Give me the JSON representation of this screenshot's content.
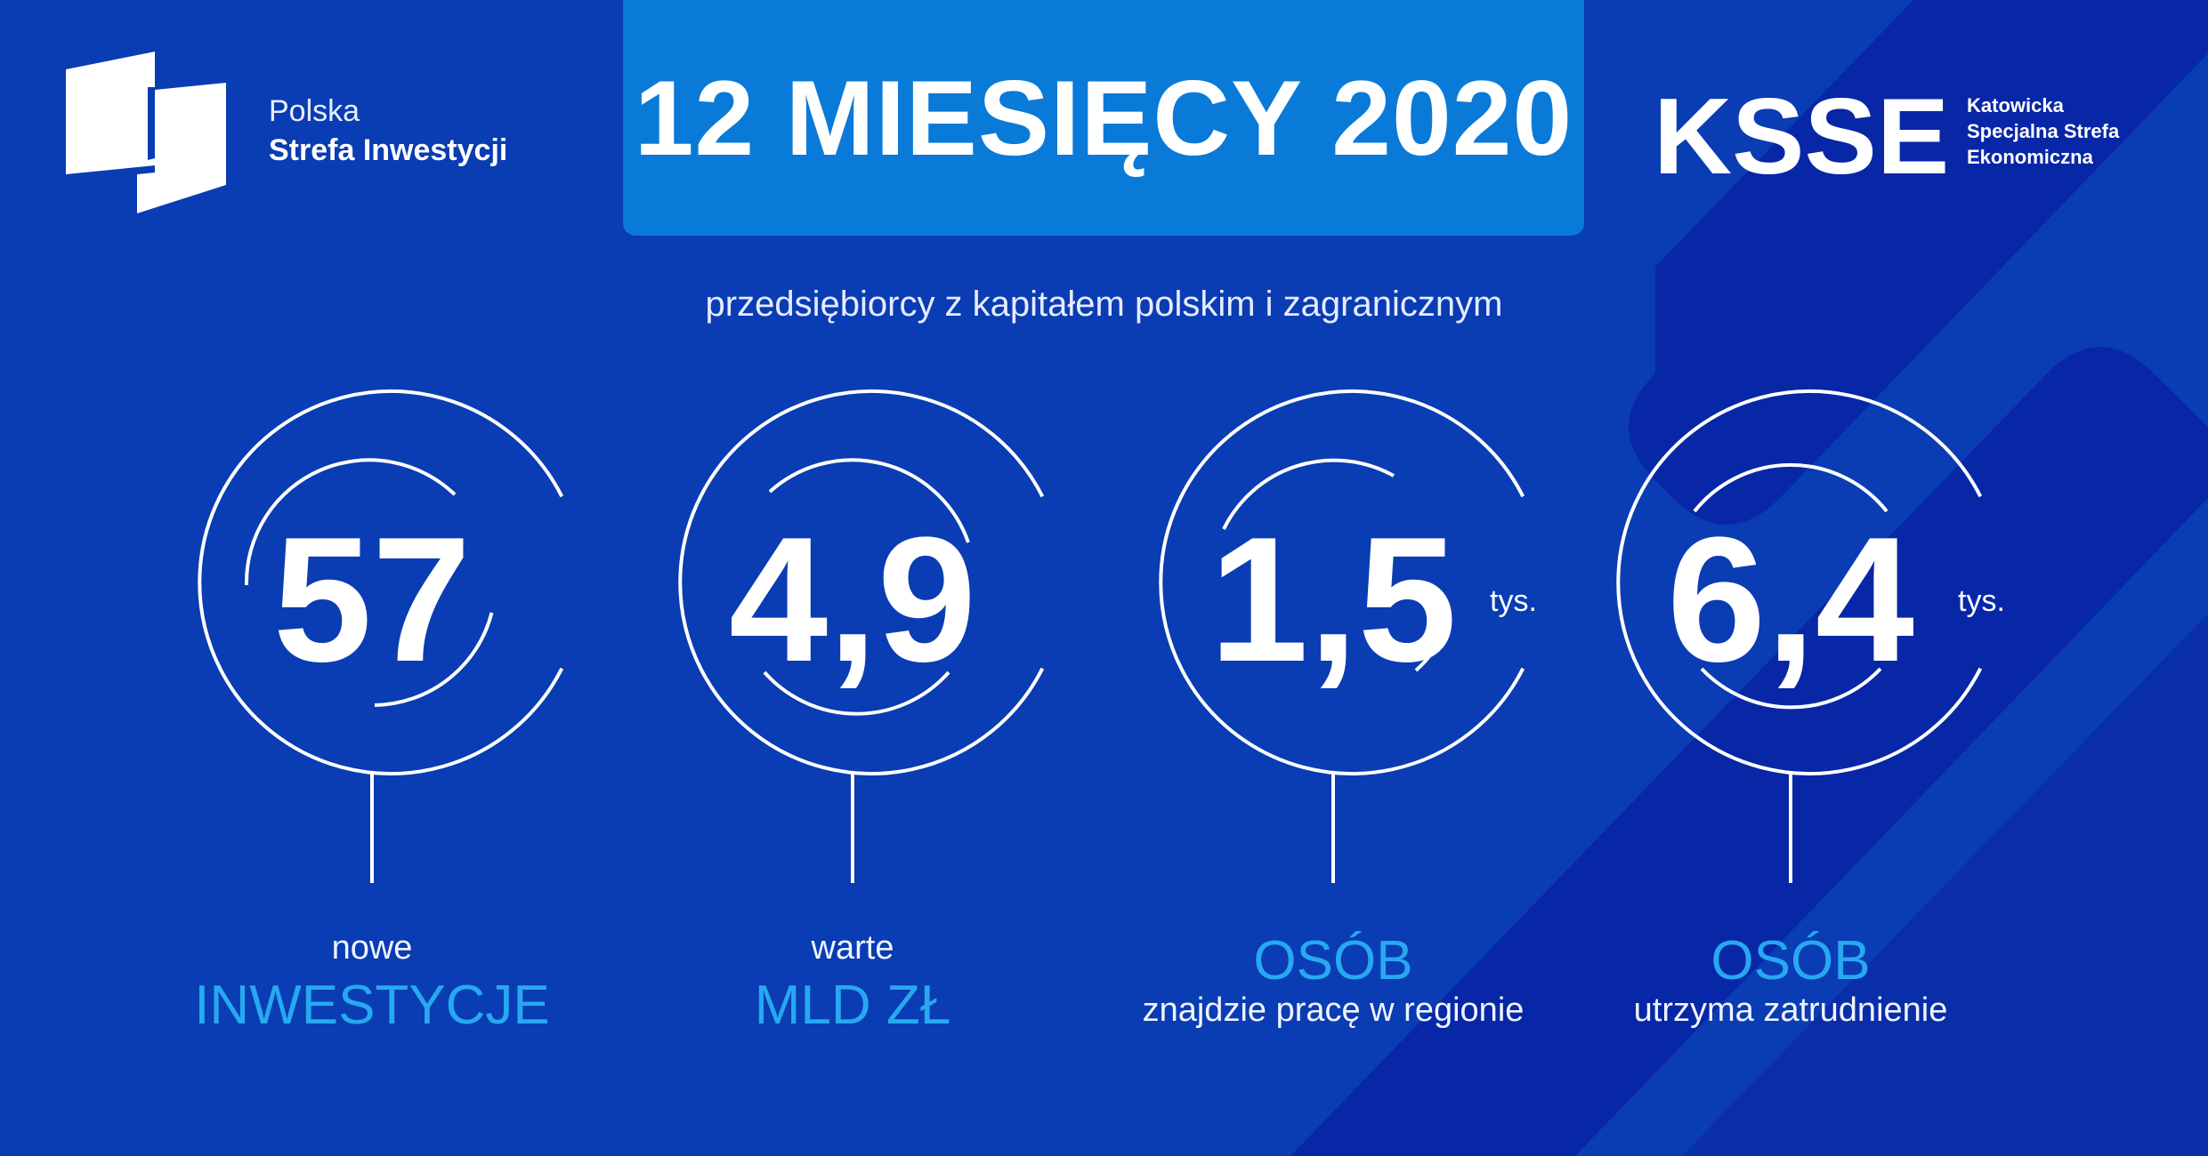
{
  "header": {
    "psi_line1": "Polska",
    "psi_line2": "Strefa Inwestycji",
    "title": "12 MIESIĘCY 2020",
    "ksse": "KSSE",
    "ksse_line1": "Katowicka",
    "ksse_line2": "Specjalna Strefa",
    "ksse_line3": "Ekonomiczna"
  },
  "subtitle": "przedsiębiorcy z kapitałem polskim i zagranicznym",
  "stats": [
    {
      "value": "57",
      "unit": "",
      "small": "nowe",
      "big": "INWESTYCJE"
    },
    {
      "value": "4,9",
      "unit": "",
      "small": "warte",
      "big": "MLD ZŁ"
    },
    {
      "value": "1,5",
      "unit": "tys.",
      "big": "OSÓB",
      "small": "znajdzie pracę w regionie"
    },
    {
      "value": "6,4",
      "unit": "tys.",
      "big": "OSÓB",
      "small": "utrzyma  zatrudnienie"
    }
  ],
  "colors": {
    "background": "#0a3cb3",
    "title_box": "#0a7ad8",
    "accent": "#27a8f0",
    "stripe": "#0827a6"
  }
}
